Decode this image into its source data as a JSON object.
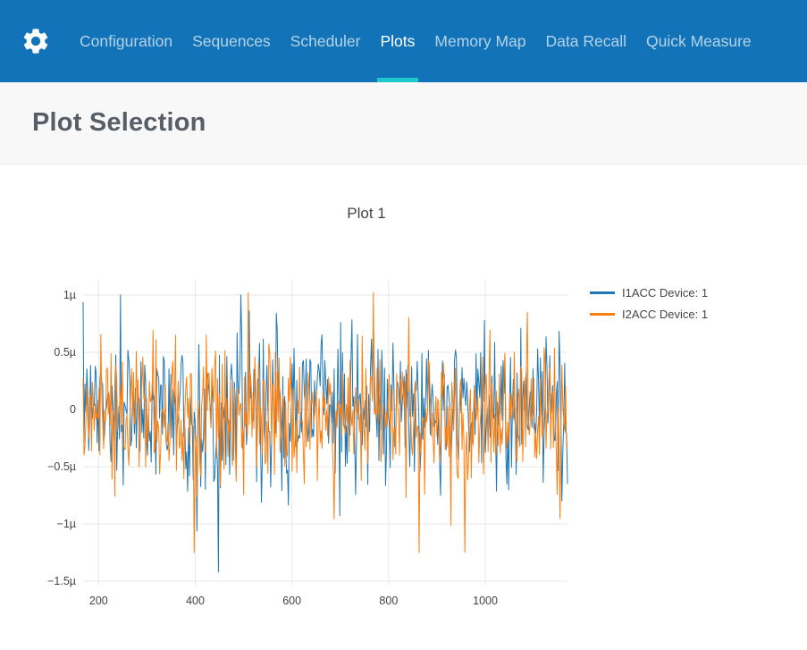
{
  "nav": {
    "background": "#1273b8",
    "active_underline_color": "#1fc8c8",
    "gear_icon": "settings-gear",
    "items": [
      {
        "label": "Configuration",
        "active": false
      },
      {
        "label": "Sequences",
        "active": false
      },
      {
        "label": "Scheduler",
        "active": false
      },
      {
        "label": "Plots",
        "active": true
      },
      {
        "label": "Memory Map",
        "active": false
      },
      {
        "label": "Data Recall",
        "active": false
      },
      {
        "label": "Quick Measure",
        "active": false
      }
    ]
  },
  "header": {
    "title": "Plot Selection"
  },
  "chart_data": {
    "type": "line",
    "title": "Plot 1",
    "xlabel": "",
    "ylabel": "",
    "grid": true,
    "legend_position": "right",
    "x_ticks": [
      200,
      400,
      600,
      800,
      1000
    ],
    "x_range": [
      168,
      1170
    ],
    "y_tick_labels": [
      "1µ",
      "0.5µ",
      "0",
      "−0.5µ",
      "−1µ",
      "−1.5µ"
    ],
    "y_tick_values_micro": [
      1,
      0.5,
      0,
      -0.5,
      -1,
      -1.5
    ],
    "y_range_micro": [
      -1.53,
      1.14
    ],
    "series": [
      {
        "name": "I1ACC Device: 1",
        "color": "#1f77b4",
        "points": 520,
        "mean_micro": 0,
        "noise_std_micro": 0.32,
        "spike_probability": 0.045,
        "spike_scale": 2.6,
        "max_micro": 1.0,
        "min_micro": -1.42,
        "seed": 1234
      },
      {
        "name": "I2ACC Device: 1",
        "color": "#ff7f0e",
        "points": 520,
        "mean_micro": -0.05,
        "noise_std_micro": 0.3,
        "spike_probability": 0.045,
        "spike_scale": 2.6,
        "max_micro": 1.02,
        "min_micro": -1.25,
        "seed": 99
      }
    ]
  }
}
